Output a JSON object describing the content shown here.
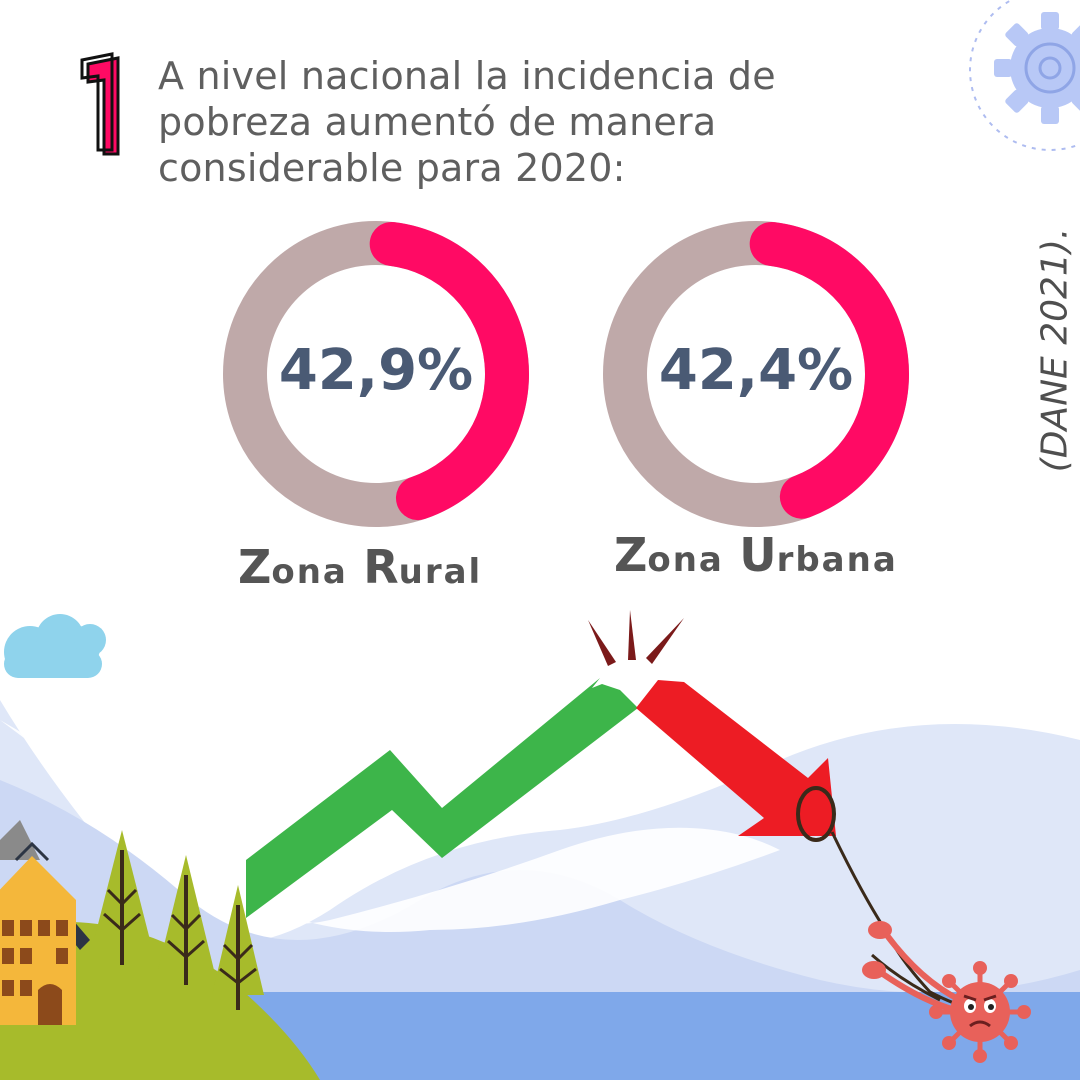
{
  "step_number": "1",
  "headline": {
    "line1": "A nivel nacional la incidencia de",
    "line2": "pobreza aumentó de manera",
    "line3": "considerable para 2020:"
  },
  "source_note": "(DANE 2021).",
  "colors": {
    "accent_pink": "#ff0a64",
    "ring_grey": "#bfa9a9",
    "value_text": "#4a5a74",
    "arrow_green": "#3db54a",
    "arrow_red": "#ed1c24"
  },
  "zones": [
    {
      "value_text": "42,9%",
      "percent": 42.9,
      "label_first": "Z",
      "label_rest": "ona",
      "label2_first": "R",
      "label2_rest": "ural"
    },
    {
      "value_text": "42,4%",
      "percent": 42.4,
      "label_first": "Z",
      "label_rest": "ona",
      "label2_first": "U",
      "label2_rest": "rbana"
    }
  ],
  "illustration": {
    "elements": [
      "cloud",
      "mountains",
      "house",
      "pine-trees",
      "green-up-arrow",
      "broken-red-down-arrow",
      "rope",
      "virus-character",
      "gear-icon"
    ]
  }
}
